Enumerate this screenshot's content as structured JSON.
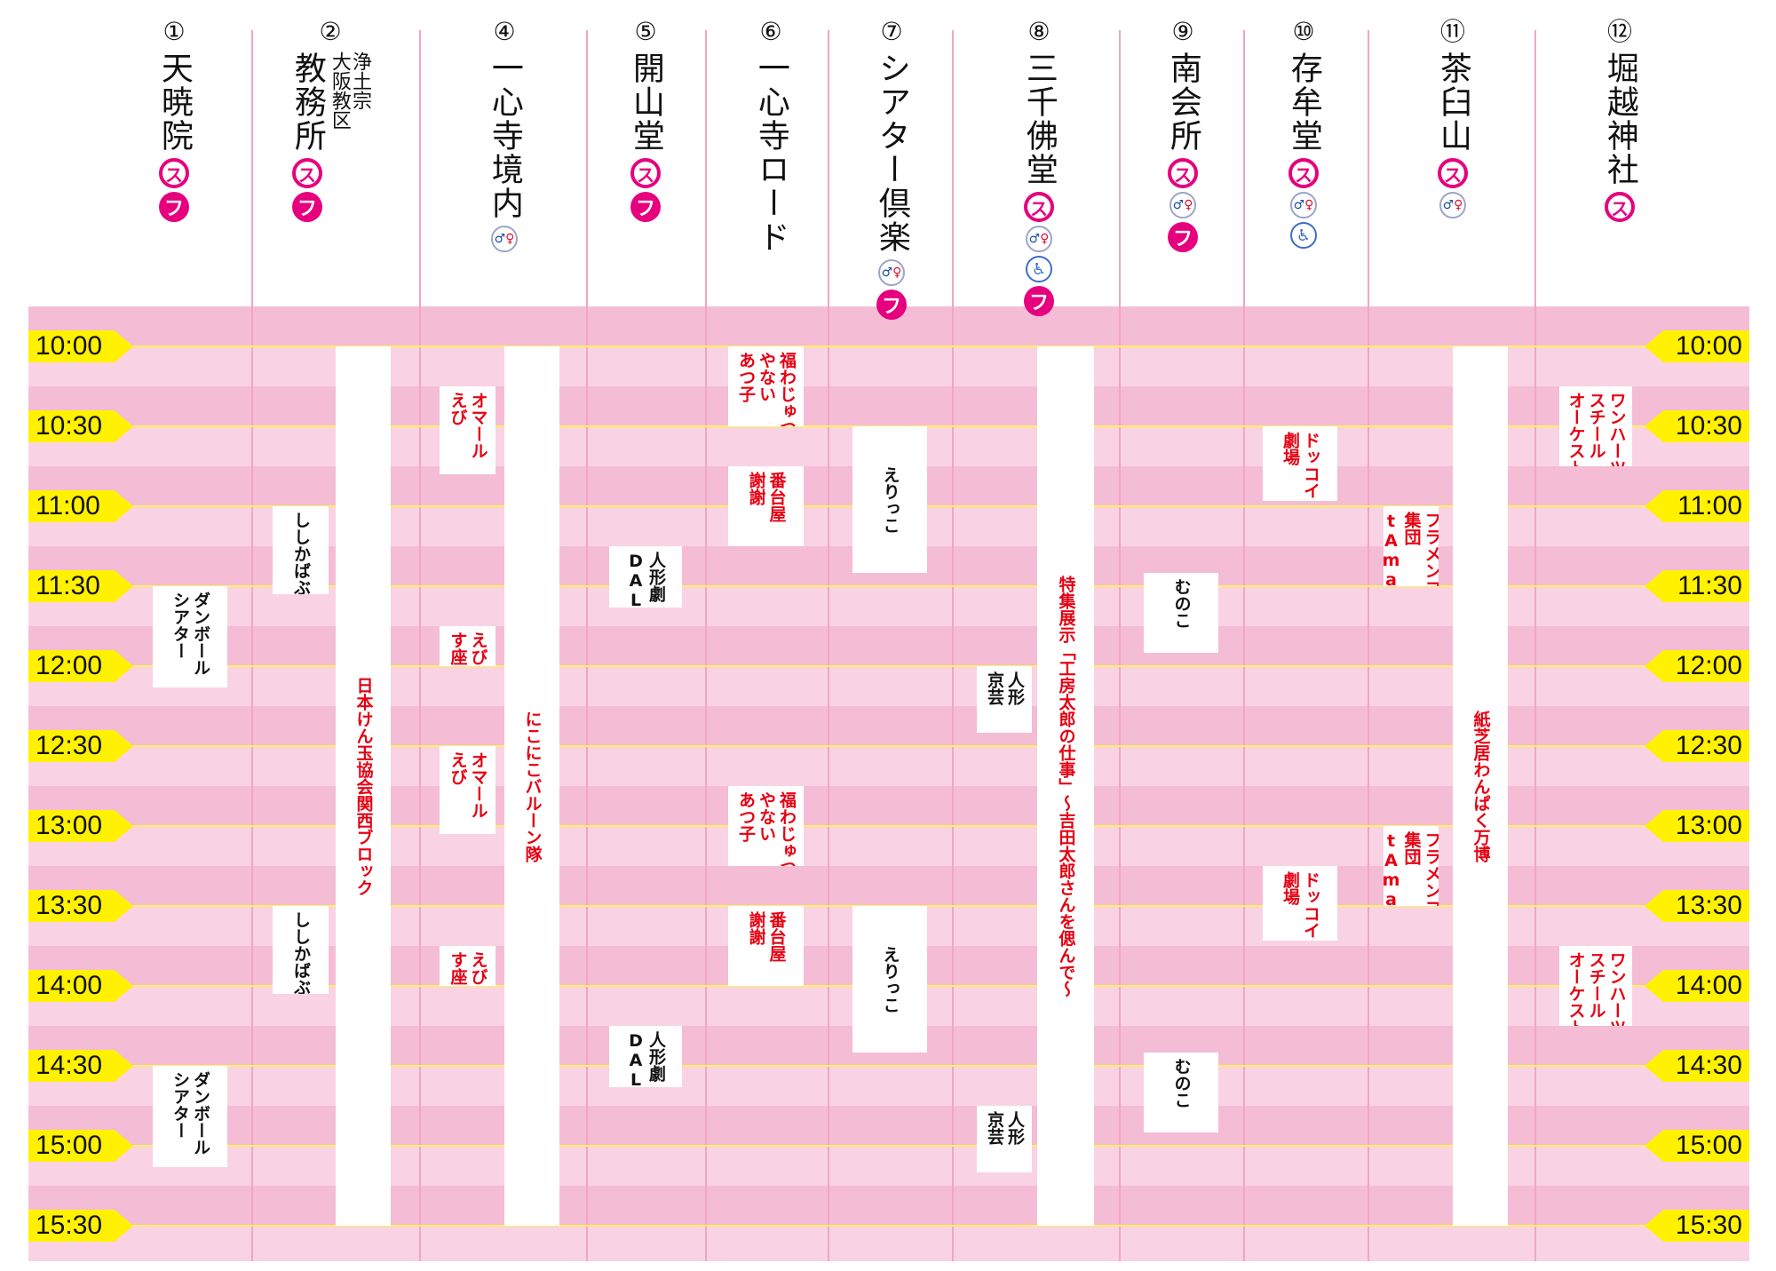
{
  "venues": [
    {
      "id": "v1",
      "number": "①",
      "name": "天暁院",
      "icons": [
        "s",
        "f"
      ]
    },
    {
      "id": "v2",
      "number": "②",
      "name_small": "浄土宗\n大阪教区",
      "name": "教務所",
      "icons": [
        "s",
        "f"
      ]
    },
    {
      "id": "v4",
      "number": "④",
      "name": "一心寺境内",
      "icons": [
        "t"
      ]
    },
    {
      "id": "v5",
      "number": "⑤",
      "name": "開山堂",
      "icons": [
        "s",
        "f"
      ]
    },
    {
      "id": "v6",
      "number": "⑥",
      "name": "一心寺ロード",
      "icons": []
    },
    {
      "id": "v7",
      "number": "⑦",
      "name": "シアター倶楽",
      "icons": [
        "t",
        "f"
      ]
    },
    {
      "id": "v8",
      "number": "⑧",
      "name": "三千佛堂",
      "icons": [
        "s",
        "t",
        "w",
        "f"
      ]
    },
    {
      "id": "v9",
      "number": "⑨",
      "name": "南会所",
      "icons": [
        "s",
        "t",
        "f"
      ]
    },
    {
      "id": "v10",
      "number": "⑩",
      "name": "存牟堂",
      "icons": [
        "s",
        "t",
        "w"
      ]
    },
    {
      "id": "v11",
      "number": "⑪",
      "name": "茶臼山",
      "icons": [
        "s",
        "t"
      ]
    },
    {
      "id": "v12",
      "number": "⑫",
      "name": "堀越神社",
      "icons": [
        "s"
      ]
    }
  ],
  "icon_names": {
    "s": "smoking-area-icon",
    "f": "food-icon",
    "t": "restroom-icon",
    "w": "wheelchair-icon"
  },
  "icon_glyphs": {
    "s": "ス",
    "f": "フ",
    "w": "♿"
  },
  "colors": {
    "accent_pink": "#e6007e",
    "band_dark": "#f5bcd5",
    "band_light": "#f9d3e3",
    "time_tag": "#fff100",
    "event_red": "#e60012"
  },
  "times": [
    "10:00",
    "10:30",
    "11:00",
    "11:30",
    "12:00",
    "12:30",
    "13:00",
    "13:30",
    "14:00",
    "14:30",
    "15:00",
    "15:30"
  ],
  "events": [
    {
      "venue": "v1",
      "start": "11:30",
      "end": "12:08",
      "text": "ダンボール\nシアター",
      "color": "black"
    },
    {
      "venue": "v1",
      "start": "14:30",
      "end": "15:08",
      "text": "ダンボール\nシアター",
      "color": "black"
    },
    {
      "venue": "v2",
      "start": "11:00",
      "end": "11:33",
      "text": "ししかばぶ",
      "color": "black"
    },
    {
      "venue": "v2",
      "start": "13:30",
      "end": "14:03",
      "text": "ししかばぶ",
      "color": "black"
    },
    {
      "venue": "v2b",
      "start": "10:00",
      "end": "15:30",
      "text": "日本けん玉協会関西ブロック",
      "color": "red",
      "center": true
    },
    {
      "venue": "v4",
      "start": "10:15",
      "end": "10:48",
      "text": "オマール\nえび",
      "color": "red"
    },
    {
      "venue": "v4",
      "start": "11:45",
      "end": "12:00",
      "text": "えび\nす座",
      "color": "red"
    },
    {
      "venue": "v4",
      "start": "12:30",
      "end": "13:03",
      "text": "オマール\nえび",
      "color": "red"
    },
    {
      "venue": "v4",
      "start": "13:45",
      "end": "14:00",
      "text": "えび\nす座",
      "color": "red"
    },
    {
      "venue": "v4b",
      "start": "10:00",
      "end": "15:30",
      "text": "にこにこバルーン隊",
      "color": "red",
      "center": true
    },
    {
      "venue": "v5",
      "start": "11:15",
      "end": "11:38",
      "text": "人形劇\nDALA",
      "color": "black"
    },
    {
      "venue": "v5",
      "start": "14:15",
      "end": "14:38",
      "text": "人形劇\nDALA",
      "color": "black"
    },
    {
      "venue": "v6",
      "start": "10:00",
      "end": "10:30",
      "text": "福わじゅつ\nやない\nあつ子",
      "color": "red"
    },
    {
      "venue": "v6",
      "start": "10:45",
      "end": "11:15",
      "text": "番台屋\n謝謝",
      "color": "red"
    },
    {
      "venue": "v6",
      "start": "12:45",
      "end": "13:15",
      "text": "福わじゅつ\nやない\nあつ子",
      "color": "red"
    },
    {
      "venue": "v6",
      "start": "13:30",
      "end": "14:00",
      "text": "番台屋\n謝謝",
      "color": "red"
    },
    {
      "venue": "v7",
      "start": "10:30",
      "end": "11:25",
      "text": "えりっこ",
      "color": "black",
      "center": true
    },
    {
      "venue": "v7",
      "start": "13:30",
      "end": "14:25",
      "text": "えりっこ",
      "color": "black",
      "center": true
    },
    {
      "venue": "v8",
      "start": "10:00",
      "end": "15:30",
      "text": "特集展示「工房太郎の仕事」〜吉田太郎さんを偲んで〜",
      "color": "red",
      "center": true
    },
    {
      "venue": "v8a",
      "start": "12:00",
      "end": "12:25",
      "text": "人形\n京芸",
      "color": "black"
    },
    {
      "venue": "v8a",
      "start": "14:45",
      "end": "15:10",
      "text": "人形\n京芸",
      "color": "black"
    },
    {
      "venue": "v9",
      "start": "11:25",
      "end": "11:55",
      "text": "むのこ",
      "color": "black"
    },
    {
      "venue": "v9",
      "start": "14:25",
      "end": "14:55",
      "text": "むのこ",
      "color": "black"
    },
    {
      "venue": "v10",
      "start": "10:30",
      "end": "10:58",
      "text": "ドッコイショ\n劇場",
      "color": "red"
    },
    {
      "venue": "v10",
      "start": "13:15",
      "end": "13:43",
      "text": "ドッコイショ\n劇場",
      "color": "red"
    },
    {
      "venue": "v11a",
      "start": "11:00",
      "end": "11:30",
      "text": "フラメンコ\n集団\ntAma.連",
      "color": "red"
    },
    {
      "venue": "v11a",
      "start": "13:00",
      "end": "13:30",
      "text": "フラメンコ\n集団\ntAma.連",
      "color": "red"
    },
    {
      "venue": "v11b",
      "start": "10:00",
      "end": "15:30",
      "text": "紙芝居わんぱく万博",
      "color": "red",
      "center": true
    },
    {
      "venue": "v12",
      "start": "10:15",
      "end": "10:45",
      "text": "ワンハーツ\nスチール\nオーケストラ",
      "color": "red"
    },
    {
      "venue": "v12",
      "start": "13:45",
      "end": "14:15",
      "text": "ワンハーツ\nスチール\nオーケストラ",
      "color": "red"
    }
  ]
}
